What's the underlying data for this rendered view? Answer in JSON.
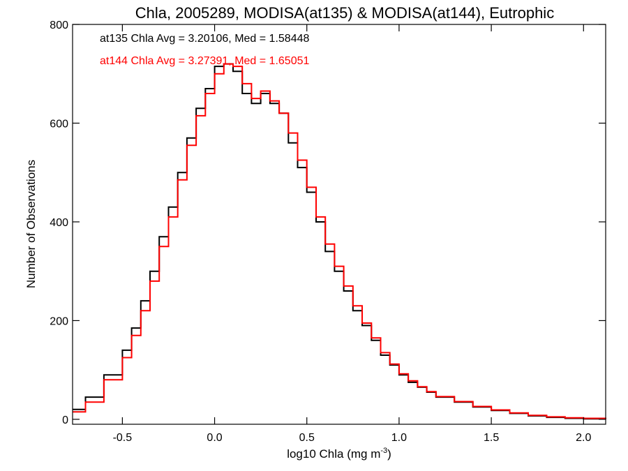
{
  "chart_data": {
    "type": "line",
    "title": "Chla, 2005289, MODISA(at135) & MODISA(at144), Eutrophic",
    "xlabel_prefix": "log10 Chla (mg m",
    "xlabel_superscript": "-3",
    "xlabel_suffix": ")",
    "ylabel": "Number of Observations",
    "xlim": [
      -0.77,
      2.12
    ],
    "ylim": [
      -10,
      800
    ],
    "x_ticks": [
      -0.5,
      0.0,
      0.5,
      1.0,
      1.5,
      2.0
    ],
    "x_tick_labels": [
      "-0.5",
      "0.0",
      "0.5",
      "1.0",
      "1.5",
      "2.0"
    ],
    "y_ticks": [
      0,
      200,
      400,
      600,
      800
    ],
    "y_tick_labels": [
      "0",
      "200",
      "400",
      "600",
      "800"
    ],
    "grid": false,
    "step_style": "histogram",
    "annotations": [
      {
        "text": "at135 Chla Avg = 3.20106, Med = 1.58448",
        "color": "#000000"
      },
      {
        "text": "at144 Chla Avg = 3.27391, Med = 1.65051",
        "color": "#ff0000"
      }
    ],
    "series": [
      {
        "color": "#000000",
        "x": [
          -0.77,
          -0.7,
          -0.6,
          -0.5,
          -0.45,
          -0.4,
          -0.35,
          -0.3,
          -0.25,
          -0.2,
          -0.15,
          -0.1,
          -0.05,
          0.0,
          0.05,
          0.1,
          0.15,
          0.2,
          0.25,
          0.3,
          0.35,
          0.4,
          0.45,
          0.5,
          0.55,
          0.6,
          0.65,
          0.7,
          0.75,
          0.8,
          0.85,
          0.9,
          0.95,
          1.0,
          1.05,
          1.1,
          1.15,
          1.2,
          1.3,
          1.4,
          1.5,
          1.6,
          1.7,
          1.8,
          1.9,
          2.0,
          2.12
        ],
        "y": [
          20,
          45,
          90,
          140,
          185,
          240,
          300,
          370,
          430,
          500,
          570,
          630,
          670,
          715,
          720,
          705,
          660,
          640,
          660,
          640,
          620,
          560,
          510,
          460,
          400,
          340,
          300,
          260,
          220,
          190,
          160,
          130,
          110,
          90,
          75,
          65,
          55,
          45,
          35,
          25,
          18,
          12,
          7,
          4,
          2,
          1,
          0
        ]
      },
      {
        "color": "#ff0000",
        "x": [
          -0.77,
          -0.7,
          -0.6,
          -0.5,
          -0.45,
          -0.4,
          -0.35,
          -0.3,
          -0.25,
          -0.2,
          -0.15,
          -0.1,
          -0.05,
          0.0,
          0.05,
          0.1,
          0.15,
          0.2,
          0.25,
          0.3,
          0.35,
          0.4,
          0.45,
          0.5,
          0.55,
          0.6,
          0.65,
          0.7,
          0.75,
          0.8,
          0.85,
          0.9,
          0.95,
          1.0,
          1.05,
          1.1,
          1.15,
          1.2,
          1.3,
          1.4,
          1.5,
          1.6,
          1.7,
          1.8,
          1.9,
          2.0,
          2.12
        ],
        "y": [
          15,
          35,
          80,
          125,
          170,
          220,
          280,
          350,
          410,
          485,
          555,
          615,
          660,
          700,
          720,
          715,
          680,
          650,
          665,
          645,
          620,
          580,
          525,
          470,
          410,
          355,
          310,
          270,
          230,
          195,
          165,
          135,
          112,
          92,
          78,
          66,
          56,
          46,
          36,
          26,
          19,
          13,
          8,
          5,
          3,
          2,
          0
        ]
      }
    ]
  }
}
